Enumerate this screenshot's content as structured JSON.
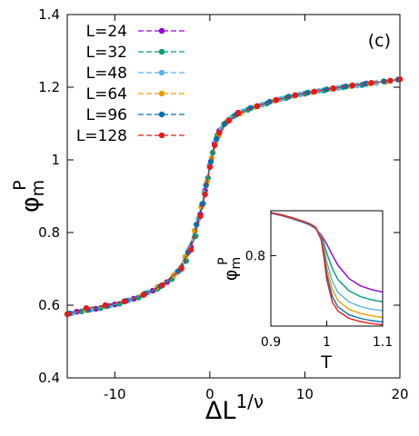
{
  "panel_label": "(c)",
  "chart_data": [
    {
      "type": "line",
      "role": "main",
      "title": "",
      "xlabel_main": "ΔL",
      "xlabel_sup": "1/ν",
      "ylabel_main": "φ",
      "ylabel_sub": "m",
      "ylabel_sup": "P",
      "xlim": [
        -15,
        20
      ],
      "ylim": [
        0.4,
        1.4
      ],
      "x_ticks": [
        {
          "v": -10,
          "label": "-10"
        },
        {
          "v": 0,
          "label": "0"
        },
        {
          "v": 10,
          "label": "10"
        },
        {
          "v": 20,
          "label": "20"
        }
      ],
      "y_ticks": [
        {
          "v": 0.4,
          "label": "0.4"
        },
        {
          "v": 0.6,
          "label": "0.6"
        },
        {
          "v": 0.8,
          "label": "0.8"
        },
        {
          "v": 1.0,
          "label": "1"
        },
        {
          "v": 1.2,
          "label": "1.2"
        },
        {
          "v": 1.4,
          "label": "1.4"
        }
      ],
      "grid": false,
      "legend_position": "top-left",
      "series": [
        {
          "name": "L=24",
          "color": "#9400d3",
          "x": [
            -14.0,
            -12.0,
            -10.0,
            -8.0,
            -6.0,
            -4.5,
            -3.0,
            -2.0,
            -1.0,
            -0.5,
            0.0,
            0.5,
            1.0,
            2.0,
            3.0,
            5.0,
            7.0,
            9.0,
            11.0,
            13.0,
            15.0,
            16.5
          ],
          "y": [
            0.582,
            0.59,
            0.602,
            0.618,
            0.64,
            0.664,
            0.704,
            0.76,
            0.85,
            0.915,
            0.985,
            1.045,
            1.08,
            1.11,
            1.13,
            1.148,
            1.165,
            1.178,
            1.188,
            1.196,
            1.204,
            1.21
          ]
        },
        {
          "name": "L=32",
          "color": "#009e73",
          "x": [
            -13.5,
            -11.5,
            -9.5,
            -7.5,
            -5.5,
            -4.0,
            -2.5,
            -1.5,
            -0.7,
            -0.2,
            0.3,
            0.8,
            1.5,
            2.5,
            4.0,
            6.0,
            8.0,
            10.0,
            12.0,
            14.0,
            16.0
          ],
          "y": [
            0.583,
            0.592,
            0.604,
            0.621,
            0.645,
            0.672,
            0.722,
            0.79,
            0.88,
            0.95,
            1.02,
            1.068,
            1.098,
            1.12,
            1.138,
            1.155,
            1.17,
            1.182,
            1.191,
            1.2,
            1.206
          ]
        },
        {
          "name": "L=48",
          "color": "#56b4e9",
          "x": [
            -14.5,
            -12.5,
            -10.5,
            -8.5,
            -6.5,
            -5.0,
            -3.5,
            -2.2,
            -1.2,
            -0.6,
            0.0,
            0.6,
            1.2,
            2.2,
            3.5,
            5.5,
            7.5,
            9.5,
            11.5,
            13.5,
            15.5,
            17.5
          ],
          "y": [
            0.578,
            0.588,
            0.599,
            0.614,
            0.635,
            0.656,
            0.69,
            0.752,
            0.838,
            0.91,
            0.985,
            1.05,
            1.085,
            1.114,
            1.134,
            1.152,
            1.168,
            1.18,
            1.19,
            1.198,
            1.205,
            1.212
          ]
        },
        {
          "name": "L=64",
          "color": "#e69f00",
          "x": [
            -15.0,
            -13.0,
            -11.0,
            -9.0,
            -7.0,
            -5.5,
            -3.8,
            -2.6,
            -1.6,
            -0.9,
            -0.3,
            0.2,
            0.9,
            1.8,
            3.2,
            4.8,
            6.8,
            8.8,
            10.8,
            12.8,
            14.8,
            16.8,
            18.5
          ],
          "y": [
            0.576,
            0.586,
            0.597,
            0.611,
            0.63,
            0.65,
            0.682,
            0.733,
            0.805,
            0.87,
            0.94,
            1.005,
            1.065,
            1.105,
            1.128,
            1.146,
            1.163,
            1.176,
            1.186,
            1.195,
            1.203,
            1.21,
            1.215
          ]
        },
        {
          "name": "L=96",
          "color": "#0072b2",
          "x": [
            -14.8,
            -12.8,
            -10.8,
            -8.8,
            -6.8,
            -5.2,
            -3.3,
            -2.3,
            -1.4,
            -0.8,
            -0.4,
            0.1,
            0.7,
            1.6,
            2.8,
            4.3,
            6.3,
            8.3,
            10.3,
            12.3,
            14.3,
            16.3,
            18.3,
            19.8
          ],
          "y": [
            0.577,
            0.587,
            0.598,
            0.612,
            0.632,
            0.652,
            0.694,
            0.745,
            0.822,
            0.878,
            0.93,
            0.995,
            1.058,
            1.1,
            1.125,
            1.143,
            1.16,
            1.174,
            1.185,
            1.194,
            1.202,
            1.209,
            1.216,
            1.221
          ]
        },
        {
          "name": "L=128",
          "color": "#e41a1c",
          "x": [
            -15.0,
            -13.0,
            -11.0,
            -9.0,
            -7.0,
            -5.0,
            -3.0,
            -2.0,
            -1.0,
            -0.5,
            0.0,
            0.5,
            1.0,
            2.0,
            3.0,
            5.0,
            7.0,
            9.0,
            11.0,
            13.0,
            15.0,
            17.0,
            19.0,
            20.0
          ],
          "y": [
            0.575,
            0.592,
            0.6,
            0.61,
            0.628,
            0.655,
            0.7,
            0.752,
            0.845,
            0.905,
            0.98,
            1.04,
            1.075,
            1.108,
            1.128,
            1.148,
            1.165,
            1.178,
            1.188,
            1.197,
            1.205,
            1.212,
            1.218,
            1.222
          ]
        }
      ]
    },
    {
      "type": "line",
      "role": "inset",
      "title": "",
      "xlabel": "T",
      "ylabel_main": "φ",
      "ylabel_sub": "m",
      "ylabel_sup": "P",
      "xlim": [
        0.9,
        1.1
      ],
      "ylim": [
        0.58,
        0.94
      ],
      "x_ticks": [
        {
          "v": 0.9,
          "label": "0.9"
        },
        {
          "v": 1.0,
          "label": "1"
        },
        {
          "v": 1.1,
          "label": "1.1"
        }
      ],
      "y_ticks": [
        {
          "v": 0.8,
          "label": "0.8"
        }
      ],
      "grid": false,
      "series": [
        {
          "name": "L=24",
          "color": "#9400d3",
          "x": [
            0.9,
            0.92,
            0.94,
            0.96,
            0.97,
            0.98,
            0.99,
            1.0,
            1.01,
            1.02,
            1.04,
            1.06,
            1.08,
            1.1
          ],
          "y": [
            0.932,
            0.924,
            0.914,
            0.902,
            0.895,
            0.884,
            0.865,
            0.836,
            0.802,
            0.77,
            0.728,
            0.706,
            0.694,
            0.686
          ]
        },
        {
          "name": "L=32",
          "color": "#009e73",
          "x": [
            0.9,
            0.92,
            0.94,
            0.96,
            0.97,
            0.98,
            0.99,
            0.995,
            1.0,
            1.01,
            1.02,
            1.04,
            1.06,
            1.08,
            1.1
          ],
          "y": [
            0.933,
            0.925,
            0.915,
            0.903,
            0.896,
            0.885,
            0.862,
            0.838,
            0.808,
            0.76,
            0.725,
            0.69,
            0.672,
            0.662,
            0.656
          ]
        },
        {
          "name": "L=48",
          "color": "#56b4e9",
          "x": [
            0.9,
            0.92,
            0.94,
            0.96,
            0.97,
            0.98,
            0.99,
            0.995,
            1.0,
            1.01,
            1.02,
            1.04,
            1.06,
            1.08,
            1.1
          ],
          "y": [
            0.933,
            0.926,
            0.916,
            0.904,
            0.897,
            0.886,
            0.858,
            0.826,
            0.782,
            0.72,
            0.685,
            0.655,
            0.641,
            0.633,
            0.628
          ]
        },
        {
          "name": "L=64",
          "color": "#e69f00",
          "x": [
            0.9,
            0.92,
            0.94,
            0.96,
            0.97,
            0.98,
            0.99,
            0.995,
            1.0,
            1.01,
            1.02,
            1.04,
            1.06,
            1.08,
            1.1
          ],
          "y": [
            0.934,
            0.926,
            0.916,
            0.905,
            0.898,
            0.887,
            0.855,
            0.815,
            0.762,
            0.695,
            0.66,
            0.632,
            0.62,
            0.612,
            0.607
          ]
        },
        {
          "name": "L=96",
          "color": "#0072b2",
          "x": [
            0.9,
            0.92,
            0.94,
            0.96,
            0.97,
            0.98,
            0.99,
            0.995,
            1.0,
            1.01,
            1.02,
            1.04,
            1.06,
            1.08,
            1.1
          ],
          "y": [
            0.934,
            0.927,
            0.917,
            0.905,
            0.898,
            0.888,
            0.852,
            0.805,
            0.742,
            0.672,
            0.64,
            0.615,
            0.604,
            0.597,
            0.593
          ]
        },
        {
          "name": "L=128",
          "color": "#e41a1c",
          "x": [
            0.9,
            0.92,
            0.94,
            0.96,
            0.97,
            0.98,
            0.99,
            0.995,
            1.0,
            1.01,
            1.02,
            1.04,
            1.06,
            1.08,
            1.1
          ],
          "y": [
            0.934,
            0.927,
            0.917,
            0.906,
            0.899,
            0.889,
            0.85,
            0.795,
            0.725,
            0.655,
            0.627,
            0.604,
            0.594,
            0.588,
            0.584
          ]
        }
      ]
    }
  ]
}
